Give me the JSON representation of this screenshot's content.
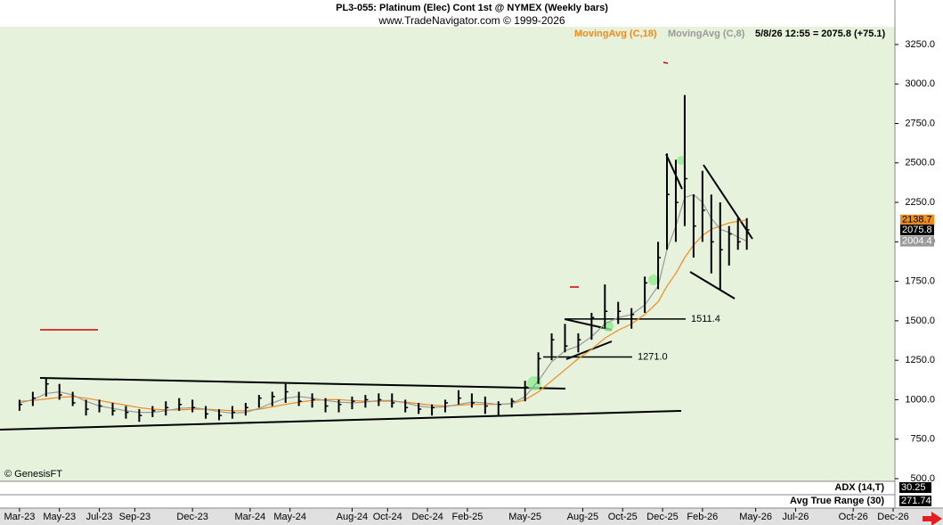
{
  "chart_data": {
    "type": "ohlc",
    "title": "PL3-055:  Platinum (Elec) Cont 1st @ NYMEX  (Weekly bars)",
    "subtitle": "www.TradeNavigator.com © 1999-2026",
    "status": "5/8/26 12:55 = 2075.8 (+75.1)",
    "credit": "© GenesisFT",
    "bar_color": "#000000",
    "x": [
      0,
      3,
      6,
      9,
      12,
      15,
      18,
      21,
      24,
      27,
      30,
      33,
      36,
      39,
      42,
      45,
      48,
      51,
      54,
      57,
      60,
      63,
      66,
      69,
      72,
      75,
      78,
      81,
      84,
      87,
      90,
      93,
      96,
      99,
      102,
      105,
      108,
      111,
      114,
      117,
      120,
      123,
      126,
      129,
      132,
      135,
      138,
      141,
      144,
      146,
      148,
      150,
      152,
      154,
      156,
      158,
      160,
      162,
      164
    ],
    "high": [
      1000,
      1050,
      1140,
      1100,
      1050,
      1000,
      1000,
      980,
      960,
      940,
      960,
      990,
      1010,
      1000,
      960,
      940,
      960,
      980,
      1030,
      1050,
      1100,
      1050,
      1040,
      1010,
      1000,
      1020,
      1030,
      1040,
      1040,
      1000,
      980,
      970,
      1000,
      1060,
      1040,
      1020,
      990,
      1010,
      1120,
      1300,
      1420,
      1480,
      1420,
      1550,
      1730,
      1620,
      1580,
      1780,
      2000,
      2560,
      2520,
      2930,
      2300,
      2450,
      2300,
      2250,
      2100,
      2150,
      2150
    ],
    "low": [
      930,
      960,
      1020,
      1000,
      960,
      900,
      920,
      900,
      880,
      860,
      890,
      900,
      930,
      920,
      880,
      870,
      880,
      900,
      950,
      960,
      980,
      960,
      950,
      920,
      920,
      940,
      950,
      960,
      950,
      920,
      910,
      900,
      920,
      970,
      950,
      910,
      900,
      950,
      990,
      1100,
      1250,
      1300,
      1300,
      1380,
      1450,
      1480,
      1450,
      1550,
      1700,
      1950,
      2000,
      2100,
      1900,
      2000,
      1800,
      1700,
      1850,
      1950,
      1950
    ],
    "close": [
      970,
      1010,
      1100,
      1030,
      980,
      940,
      960,
      930,
      920,
      900,
      930,
      950,
      970,
      950,
      910,
      900,
      920,
      950,
      1010,
      1020,
      1050,
      990,
      1000,
      960,
      970,
      990,
      1000,
      1000,
      980,
      950,
      940,
      950,
      980,
      1010,
      980,
      960,
      970,
      990,
      1080,
      1260,
      1380,
      1340,
      1380,
      1520,
      1560,
      1560,
      1540,
      1740,
      1900,
      2300,
      2250,
      2400,
      2100,
      2200,
      2000,
      1950,
      2050,
      2000,
      2075.8
    ],
    "series": [
      {
        "name": "MovingAvg (C,18)",
        "color": "#f08c1e",
        "values": [
          990,
          995,
          1005,
          1015,
          1020,
          1010,
          995,
          980,
          965,
          950,
          940,
          935,
          935,
          940,
          940,
          935,
          930,
          930,
          940,
          955,
          970,
          985,
          995,
          1000,
          1000,
          995,
          990,
          990,
          990,
          985,
          975,
          965,
          960,
          965,
          970,
          970,
          970,
          975,
          1000,
          1050,
          1120,
          1190,
          1260,
          1320,
          1390,
          1440,
          1480,
          1540,
          1620,
          1720,
          1800,
          1900,
          1980,
          2040,
          2080,
          2100,
          2120,
          2130,
          2138.7
        ]
      },
      {
        "name": "MovingAvg (C,8)",
        "color": "#9a9a9a",
        "values": [
          980,
          1000,
          1040,
          1050,
          1030,
          990,
          960,
          945,
          930,
          920,
          920,
          930,
          945,
          950,
          940,
          925,
          915,
          920,
          945,
          980,
          1010,
          1020,
          1010,
          995,
          985,
          980,
          985,
          995,
          995,
          980,
          960,
          950,
          955,
          970,
          985,
          980,
          970,
          975,
          1020,
          1120,
          1240,
          1310,
          1340,
          1400,
          1480,
          1520,
          1540,
          1600,
          1720,
          1950,
          2100,
          2280,
          2300,
          2250,
          2150,
          2080,
          2060,
          2030,
          2004.4
        ]
      }
    ],
    "levels": [
      1511.4,
      {
        "value": 1271,
        "label": "1271.0"
      }
    ],
    "xlim": [
      -4.4,
      197.4
    ],
    "xticks": [
      {
        "value": 0,
        "label": "Mar-23"
      },
      {
        "value": 9,
        "label": "May-23"
      },
      {
        "value": 18,
        "label": "Jul-23"
      },
      {
        "value": 26,
        "label": "Sep-23"
      },
      {
        "value": 39,
        "label": "Dec-23"
      },
      {
        "value": 52,
        "label": "Mar-24"
      },
      {
        "value": 61,
        "label": "May-24"
      },
      {
        "value": 75,
        "label": "Aug-24"
      },
      {
        "value": 83,
        "label": "Oct-24"
      },
      {
        "value": 92,
        "label": "Dec-24"
      },
      {
        "value": 101,
        "label": "Feb-25"
      },
      {
        "value": 114,
        "label": "May-25"
      },
      {
        "value": 127,
        "label": "Aug-25"
      },
      {
        "value": 136,
        "label": "Oct-25"
      },
      {
        "value": 145,
        "label": "Dec-25"
      },
      {
        "value": 154,
        "label": "Feb-26"
      },
      {
        "value": 166,
        "label": "May-26"
      },
      {
        "value": 175,
        "label": "Jul-26"
      },
      {
        "value": 188,
        "label": "Oct-26"
      },
      {
        "value": 197,
        "label": "Dec-26"
      }
    ],
    "ylim": [
      483,
      3532
    ],
    "yticks": [
      {
        "value": 500,
        "label": "500.0"
      },
      {
        "value": 750,
        "label": "750.0"
      },
      {
        "value": 1000,
        "label": "1000.0"
      },
      {
        "value": 1250,
        "label": "1250.0"
      },
      {
        "value": 1500,
        "label": "1500.0"
      },
      {
        "value": 1750,
        "label": "1750.0"
      },
      {
        "value": 2000,
        "label": "2000.0"
      },
      {
        "value": 2250,
        "label": "2250.0"
      },
      {
        "value": 2500,
        "label": "2500.0"
      },
      {
        "value": 2750,
        "label": "2750.0"
      },
      {
        "value": 3000,
        "label": "3000.0"
      },
      {
        "value": 3250,
        "label": "3250.0"
      }
    ],
    "indicators": [
      {
        "name": "ADX (14,T)",
        "value": 30.25
      },
      {
        "name": "Avg True Range (30)",
        "value": 271.74
      }
    ]
  }
}
